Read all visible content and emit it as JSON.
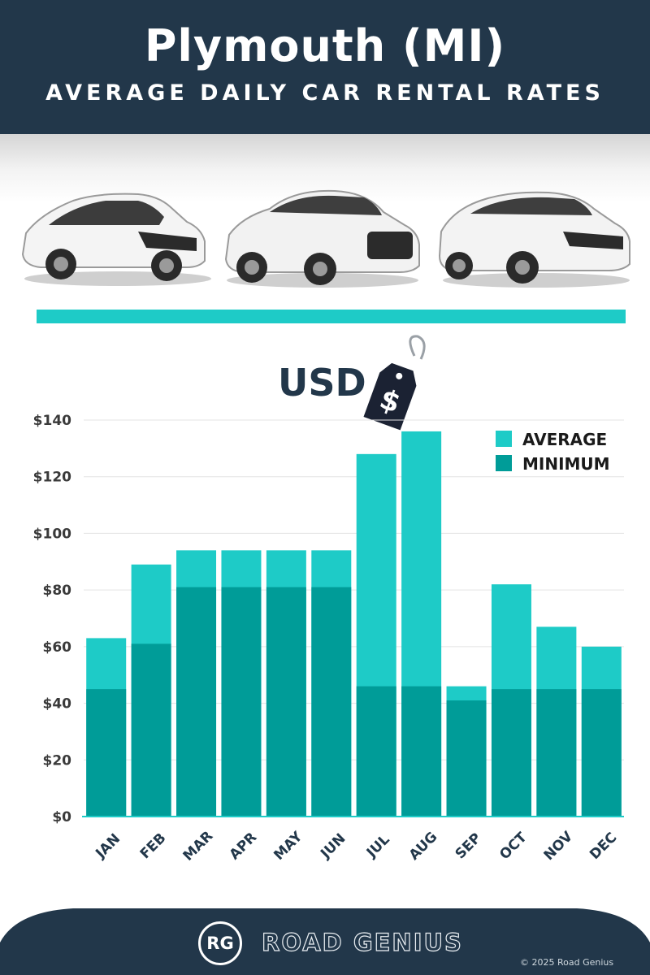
{
  "header": {
    "title": "Plymouth (MI)",
    "subtitle": "AVERAGE DAILY CAR RENTAL RATES"
  },
  "currency_label": "USD",
  "tag_symbol": "$",
  "colors": {
    "navy": "#22374a",
    "average": "#1ecbc7",
    "minimum": "#009c98",
    "divider": "#1ecbc7"
  },
  "chart_data": {
    "type": "bar",
    "stacked_overlay": true,
    "categories": [
      "JAN",
      "FEB",
      "MAR",
      "APR",
      "MAY",
      "JUN",
      "JUL",
      "AUG",
      "SEP",
      "OCT",
      "NOV",
      "DEC"
    ],
    "series": [
      {
        "name": "AVERAGE",
        "values": [
          63,
          89,
          94,
          94,
          94,
          94,
          128,
          136,
          46,
          82,
          67,
          60
        ]
      },
      {
        "name": "MINIMUM",
        "values": [
          45,
          61,
          81,
          81,
          81,
          81,
          46,
          46,
          41,
          45,
          45,
          45
        ]
      }
    ],
    "y_ticks": [
      "$0",
      "$20",
      "$40",
      "$60",
      "$80",
      "$100",
      "$120",
      "$140"
    ],
    "ylim": [
      0,
      140
    ],
    "grid": true,
    "legend": "top-right"
  },
  "footer": {
    "logo_initials": "RG",
    "brand": "ROAD GENIUS",
    "copyright": "© 2025 Road Genius"
  }
}
